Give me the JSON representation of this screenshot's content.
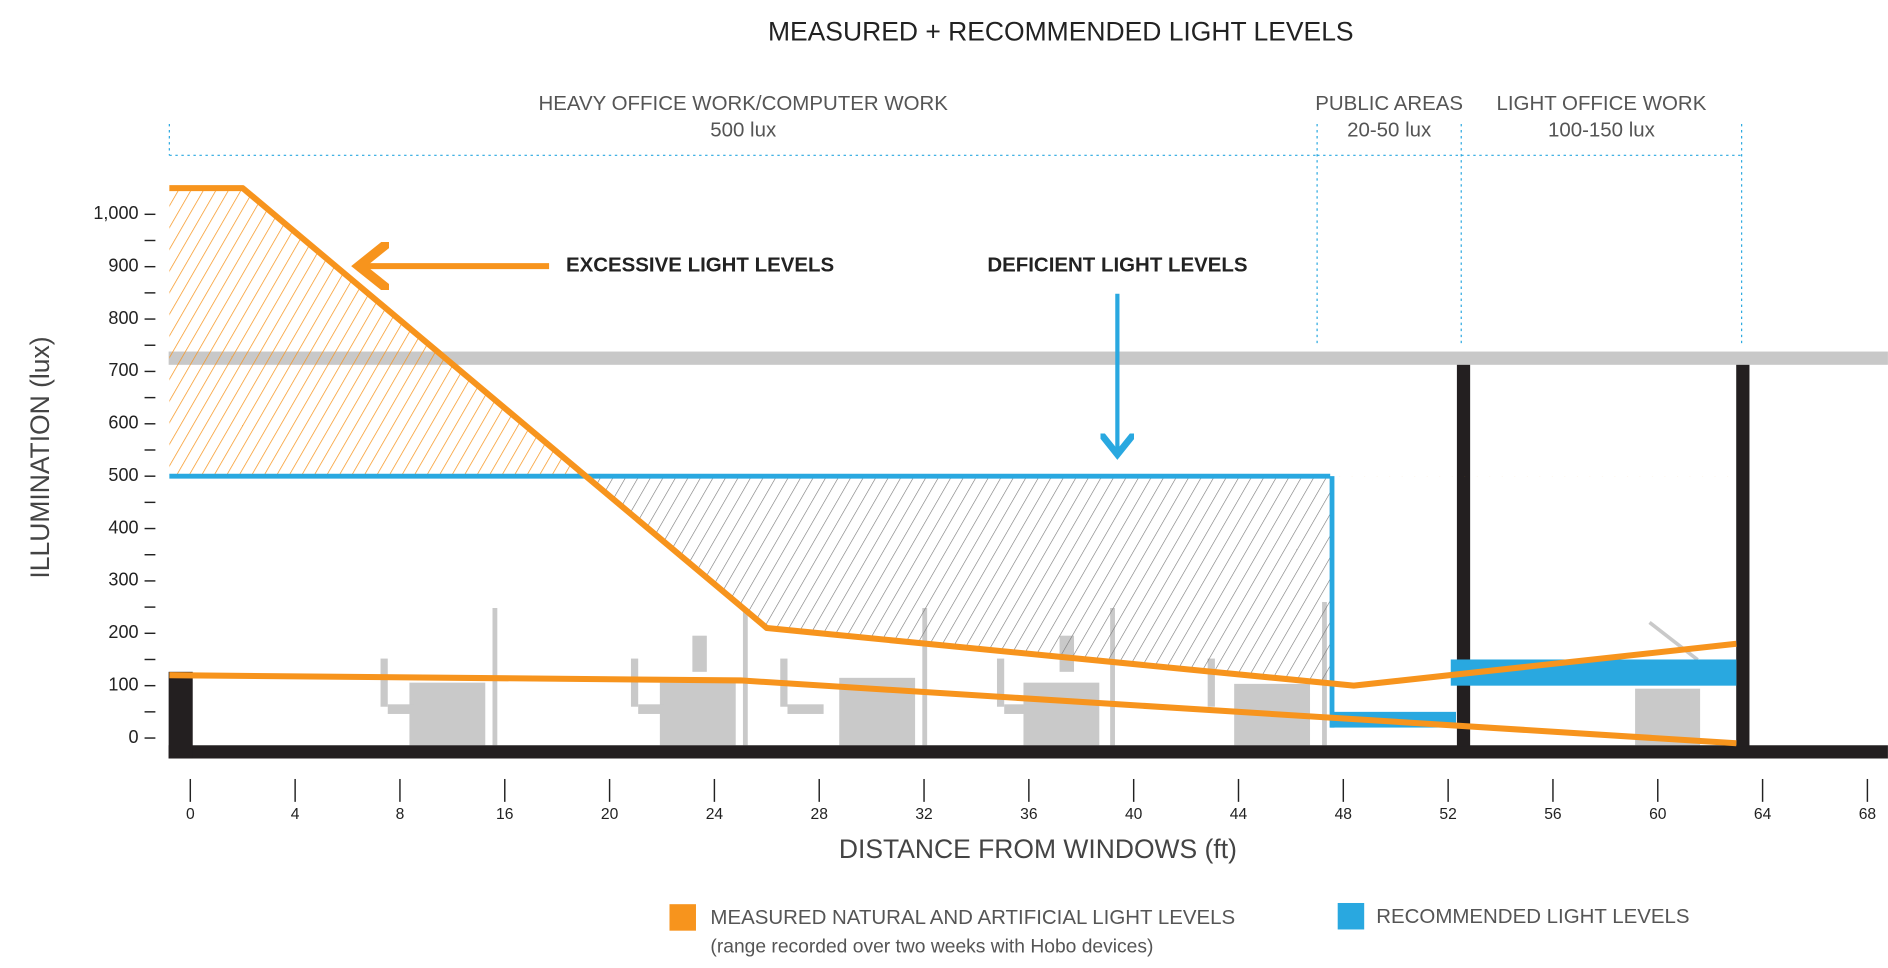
{
  "chart_data": {
    "type": "line",
    "title": "MEASURED + RECOMMENDED LIGHT LEVELS",
    "x_label": "DISTANCE FROM WINDOWS  (ft)",
    "y_label": "ILLUMINATION (lux)",
    "xticks": [
      0,
      4,
      8,
      16,
      20,
      24,
      28,
      32,
      36,
      40,
      44,
      48,
      52,
      56,
      60,
      64,
      68
    ],
    "ylim": [
      0,
      1000
    ],
    "yticks": [
      0,
      100,
      200,
      300,
      400,
      500,
      600,
      700,
      800,
      900,
      {
        "value": 1000,
        "label": "1,000"
      }
    ],
    "zones": [
      {
        "label": "HEAVY OFFICE WORK/COMPUTER WORK",
        "level": "500 lux",
        "x": [
          -0.8,
          47
        ]
      },
      {
        "label": "PUBLIC AREAS",
        "level": "20-50 lux",
        "x": [
          47,
          52.5
        ]
      },
      {
        "label": "LIGHT OFFICE WORK",
        "level": "100-150 lux",
        "x": [
          52.5,
          63.2
        ]
      }
    ],
    "measured": {
      "name": "MEASURED NATURAL AND ARTIFICIAL LIGHT LEVELS",
      "note": "(range recorded over two weeks with Hobo devices)",
      "color": "#f7941d",
      "lines": [
        {
          "x": [
            -0.8,
            2,
            26,
            48.4,
            63
          ],
          "values": [
            1050,
            1050,
            210,
            100,
            180
          ]
        },
        {
          "x": [
            -0.8,
            25,
            63
          ],
          "values": [
            120,
            110,
            -10
          ]
        }
      ]
    },
    "recommended": {
      "name": "RECOMMENDED LIGHT LEVELS",
      "color": "#29a8e0",
      "bands": [
        {
          "x": [
            -0.8,
            47.5
          ],
          "low": 500,
          "high": 500
        },
        {
          "x": [
            47.5,
            52.3
          ],
          "low": 20,
          "high": 50
        },
        {
          "x": [
            52.1,
            63
          ],
          "low": 100,
          "high": 150
        }
      ]
    },
    "annotations": [
      {
        "text": "EXCESSIVE LIGHT LEVELS"
      },
      {
        "text": "DEFICIENT LIGHT LEVELS"
      }
    ]
  }
}
